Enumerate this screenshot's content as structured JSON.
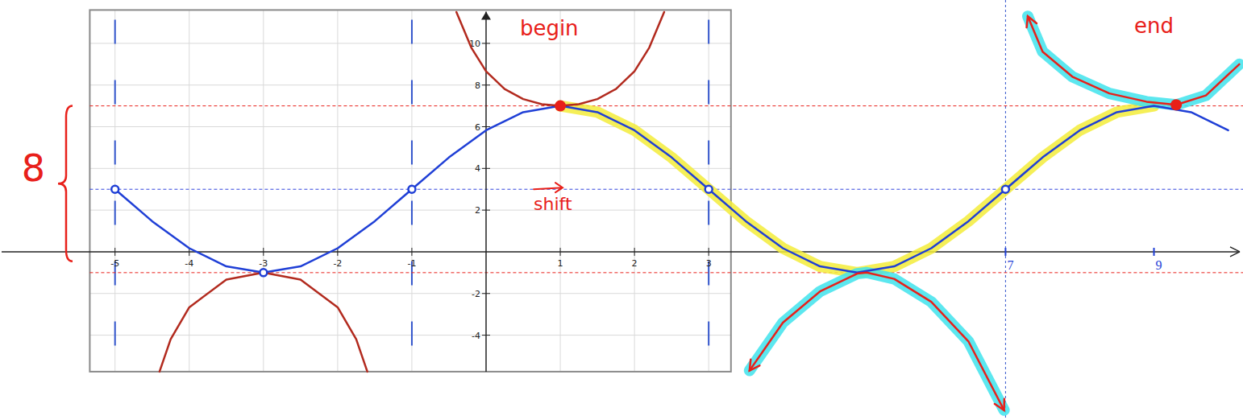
{
  "chart_data": {
    "type": "line",
    "xlim": [
      -6.55,
      10.2
    ],
    "ylim": [
      -8.07,
      12.08
    ],
    "window_xlim": [
      -5.34,
      3.3
    ],
    "window_ylim": [
      -5.75,
      11.6
    ],
    "xticks": [
      -5,
      -4,
      -3,
      -2,
      -1,
      1,
      2,
      3,
      7,
      9
    ],
    "yticks": [
      -4,
      -2,
      2,
      4,
      6,
      8,
      10
    ],
    "grid": true,
    "series": [
      {
        "type": "line",
        "color": "#1f3fd6",
        "x": [
          -5,
          -4.5,
          -4,
          -3.5,
          -3,
          -2.5,
          -2,
          -1.5,
          -1,
          -0.5,
          0,
          0.5,
          1,
          1.5,
          2,
          2.5,
          3,
          3.5,
          4,
          4.5,
          5,
          5.5,
          6,
          6.5,
          7,
          7.5,
          8,
          8.5,
          9,
          9.5,
          10
        ],
        "values": [
          3,
          1.47,
          0.17,
          -0.7,
          -1,
          -0.7,
          0.17,
          1.47,
          3,
          4.53,
          5.83,
          6.7,
          7,
          6.7,
          5.83,
          4.53,
          3,
          1.47,
          0.17,
          -0.7,
          -1,
          -0.7,
          0.17,
          1.47,
          3,
          4.53,
          5.83,
          6.7,
          7,
          6.7,
          5.83
        ]
      },
      {
        "type": "line",
        "color": "#b22a1e",
        "x": [
          -0.4,
          -0.2,
          0,
          0.25,
          0.5,
          0.75,
          1,
          1.25,
          1.5,
          1.75,
          2,
          2.2,
          2.4
        ],
        "values": [
          11.5,
          9.8,
          8.66,
          7.81,
          7.33,
          7.08,
          7,
          7.08,
          7.33,
          7.81,
          8.66,
          9.8,
          11.5
        ]
      },
      {
        "type": "line",
        "color": "#b22a1e",
        "x": [
          -4.4,
          -4.25,
          -4,
          -3.5,
          -3,
          -2.5,
          -2,
          -1.75,
          -1.6
        ],
        "values": [
          -5.75,
          -4.2,
          -2.66,
          -1.33,
          -1,
          -1.33,
          -2.66,
          -4.2,
          -5.75
        ]
      },
      {
        "type": "line",
        "color": "#e8201a",
        "line_style": "highlighted",
        "marker": "arrows",
        "x": [
          3.55,
          4,
          4.5,
          5,
          5.13,
          5.5,
          6,
          6.5,
          6.98
        ],
        "values": [
          -5.7,
          -3.4,
          -1.9,
          -1.05,
          -1,
          -1.3,
          -2.4,
          -4.3,
          -7.6
        ]
      },
      {
        "type": "line",
        "color": "#e8201a",
        "line_style": "highlighted",
        "marker": "arrow",
        "x": [
          7.3,
          7.5,
          7.9,
          8.4,
          8.9,
          9.3,
          9.7,
          10.15
        ],
        "values": [
          11.3,
          9.6,
          8.4,
          7.6,
          7.2,
          7.05,
          7.5,
          9
        ]
      },
      {
        "type": "scatter",
        "color": "#1f3fd6",
        "marker": "circle",
        "x": [
          -5,
          -3,
          -1,
          3,
          7
        ],
        "values": [
          3,
          -1,
          3,
          3,
          3
        ]
      }
    ],
    "guides": [
      {
        "y": 7,
        "color": "#e8201a"
      },
      {
        "y": -1,
        "color": "#e8201a"
      },
      {
        "y": 3,
        "color": "#3344dd"
      }
    ],
    "asymptotes": [
      -5,
      -1,
      3,
      7
    ],
    "points": [
      {
        "x": 1,
        "y": 7,
        "color": "#e8201a"
      },
      {
        "x": 9.3,
        "y": 7.05,
        "color": "#e8201a"
      }
    ],
    "annotations": [
      {
        "text": "begin",
        "x": 0.85,
        "y": 10.4,
        "color": "#e8201a"
      },
      {
        "text": "end",
        "x": 9.0,
        "y": 10.5,
        "color": "#e8201a"
      },
      {
        "text": "shift",
        "x": 0.9,
        "y": 2.0,
        "color": "#e8201a"
      },
      {
        "text": "8",
        "x": -6.1,
        "y": 3.4,
        "color": "#e8201a"
      }
    ]
  }
}
